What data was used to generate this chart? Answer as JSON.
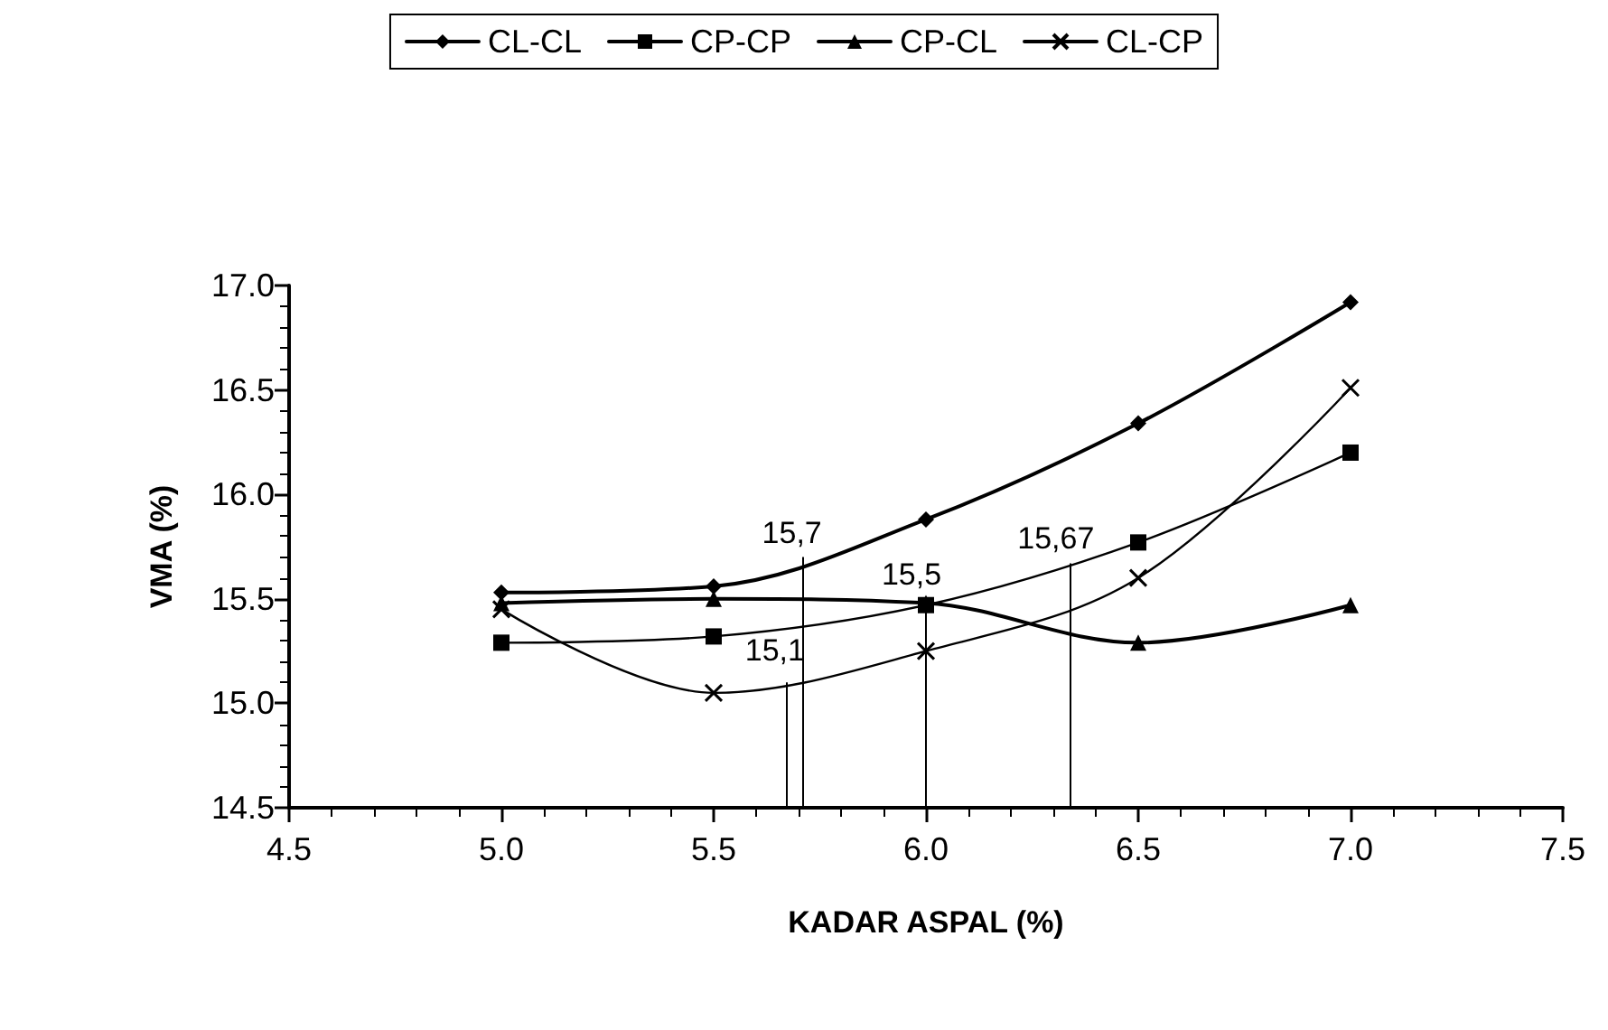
{
  "chart_data": {
    "type": "line",
    "xlabel": "KADAR ASPAL (%)",
    "ylabel": "VMA (%)",
    "x": [
      5.0,
      5.5,
      6.0,
      6.5,
      7.0
    ],
    "series": [
      {
        "name": "CL-CL",
        "color": "#000000",
        "marker": "diamond",
        "values": [
          15.53,
          15.56,
          15.88,
          16.34,
          16.92
        ]
      },
      {
        "name": "CP-CP",
        "color": "#000000",
        "marker": "square",
        "values": [
          15.29,
          15.32,
          15.47,
          15.77,
          16.2
        ]
      },
      {
        "name": "CP-CL",
        "color": "#000000",
        "marker": "triangle",
        "values": [
          15.48,
          15.5,
          15.48,
          15.29,
          15.47
        ]
      },
      {
        "name": "CL-CP",
        "color": "#000000",
        "marker": "cross",
        "values": [
          15.45,
          15.05,
          15.25,
          15.6,
          16.51
        ]
      }
    ],
    "xlim": [
      4.5,
      7.5
    ],
    "xticks": [
      4.5,
      {
        "value": 5,
        "label": "5.0"
      },
      5.5,
      {
        "value": 6,
        "label": "6.0"
      },
      6.5,
      {
        "value": 7,
        "label": "7.0"
      },
      7.5
    ],
    "ylim": [
      14.5,
      17.0
    ],
    "yticks": [
      14.5,
      {
        "value": 15,
        "label": "15.0"
      },
      15.5,
      {
        "value": 16,
        "label": "16.0"
      },
      16.5,
      {
        "value": 17,
        "label": "17.0"
      }
    ],
    "ref_lines": [
      {
        "axis": "x",
        "value": 5.67
      },
      {
        "axis": "x",
        "value": 5.71
      },
      {
        "axis": "x",
        "value": 6.0
      },
      {
        "axis": "x",
        "value": 6.34
      }
    ],
    "annotations": [
      {
        "text": "15,1",
        "x": 5.67,
        "y": 15.1
      },
      {
        "text": "15,7",
        "x": 5.71,
        "y": 15.7
      },
      {
        "text": "15,5",
        "x": 6.0,
        "y": 15.5
      },
      {
        "text": "15,67",
        "x": 6.34,
        "y": 15.67
      }
    ],
    "grid": false,
    "legend": "top",
    "line_style": "solid"
  }
}
